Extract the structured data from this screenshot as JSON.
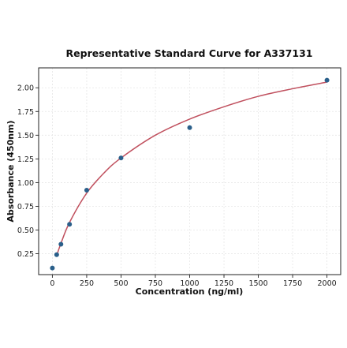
{
  "chart_data": {
    "type": "scatter",
    "title": "Representative Standard Curve for A337131",
    "xlabel": "Concentration (ng/ml)",
    "ylabel": "Absorbance (450nm)",
    "xlim": [
      -100,
      2100
    ],
    "ylim": [
      0.03,
      2.21
    ],
    "x_ticks": [
      0,
      250,
      500,
      750,
      1000,
      1250,
      1500,
      1750,
      2000
    ],
    "x_tick_labels": [
      "0",
      "250",
      "500",
      "750",
      "1000",
      "1250",
      "1500",
      "1750",
      "2000"
    ],
    "y_ticks": [
      0.25,
      0.5,
      0.75,
      1.0,
      1.25,
      1.5,
      1.75,
      2.0
    ],
    "y_tick_labels": [
      "0.25",
      "0.50",
      "0.75",
      "1.00",
      "1.25",
      "1.50",
      "1.75",
      "2.00"
    ],
    "grid": true,
    "series": [
      {
        "kind": "points",
        "color": "#2a5f8a",
        "x": [
          0,
          31.25,
          62.5,
          125,
          250,
          500,
          1000,
          2000
        ],
        "y": [
          0.1,
          0.24,
          0.35,
          0.56,
          0.92,
          1.26,
          1.58,
          2.08
        ]
      },
      {
        "kind": "fit-curve",
        "color": "#c0505e",
        "x": [
          31.25,
          62.5,
          125,
          250,
          375,
          500,
          750,
          1000,
          1250,
          1500,
          1750,
          2000
        ],
        "y": [
          0.23,
          0.36,
          0.58,
          0.89,
          1.1,
          1.26,
          1.5,
          1.67,
          1.8,
          1.91,
          1.99,
          2.06
        ]
      }
    ]
  }
}
